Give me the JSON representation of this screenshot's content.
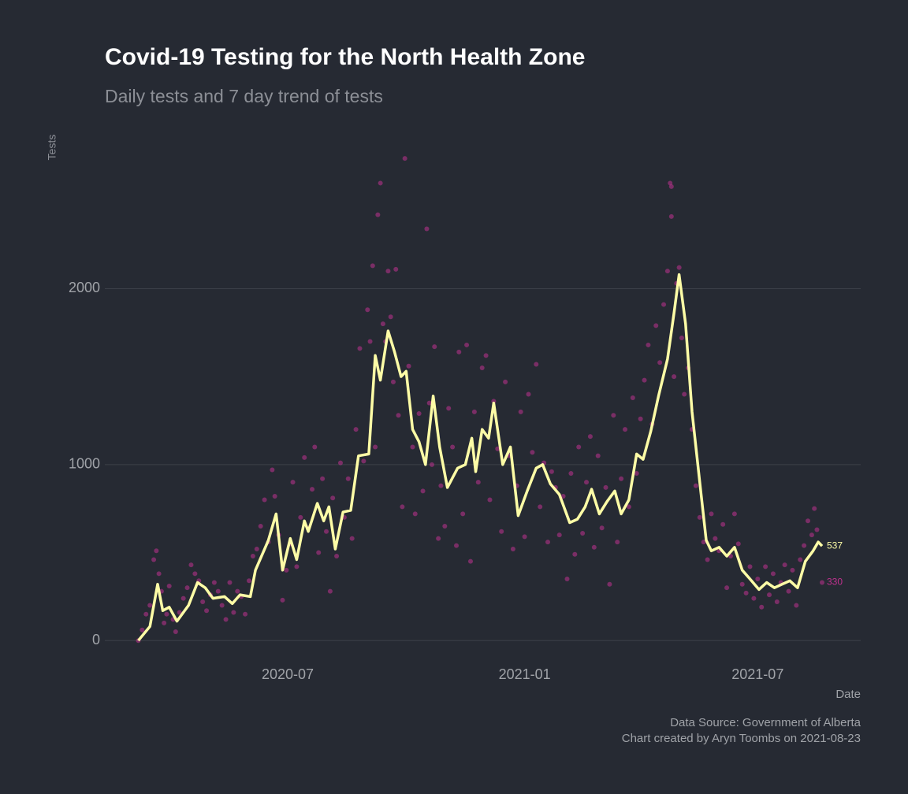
{
  "chart_data": {
    "type": "scatter",
    "title": "Covid-19 Testing for the North Health Zone",
    "subtitle": "Daily tests and 7 day trend of tests",
    "x_label": "Date",
    "y_label": "Tests",
    "caption": [
      "Data Source: Government of Alberta",
      "Chart created by Aryn Toombs on 2021-08-23"
    ],
    "xlim": [
      18302,
      18889
    ],
    "xticks": [
      {
        "value": 18444,
        "label": "2020-07"
      },
      {
        "value": 18628,
        "label": "2021-01"
      },
      {
        "value": 18809,
        "label": "2021-07"
      }
    ],
    "ylim": [
      -120,
      2790
    ],
    "yticks": [
      0,
      1000,
      2000
    ],
    "grid": true,
    "series": [
      {
        "mark": "point",
        "color": "#c0318f",
        "x": [
          18328,
          18331,
          18334,
          18337,
          18340,
          18342,
          18344,
          18346,
          18348,
          18350,
          18352,
          18355,
          18357,
          18360,
          18363,
          18366,
          18369,
          18372,
          18375,
          18378,
          18381,
          18384,
          18387,
          18390,
          18393,
          18396,
          18399,
          18402,
          18405,
          18408,
          18411,
          18414,
          18417,
          18420,
          18423,
          18426,
          18429,
          18432,
          18434,
          18437,
          18440,
          18443,
          18446,
          18448,
          18451,
          18454,
          18457,
          18460,
          18463,
          18465,
          18468,
          18471,
          18474,
          18477,
          18479,
          18482,
          18485,
          18488,
          18491,
          18494,
          18497,
          18500,
          18503,
          18506,
          18508,
          18510,
          18512,
          18514,
          18516,
          18518,
          18520,
          18522,
          18524,
          18526,
          18528,
          18530,
          18533,
          18535,
          18538,
          18541,
          18543,
          18546,
          18549,
          18552,
          18554,
          18556,
          18558,
          18561,
          18563,
          18566,
          18569,
          18572,
          18575,
          18577,
          18580,
          18583,
          18586,
          18589,
          18592,
          18595,
          18598,
          18601,
          18604,
          18607,
          18610,
          18613,
          18616,
          18619,
          18622,
          18625,
          18628,
          18631,
          18634,
          18637,
          18640,
          18643,
          18646,
          18649,
          18652,
          18655,
          18658,
          18661,
          18664,
          18667,
          18670,
          18673,
          18676,
          18679,
          18682,
          18685,
          18688,
          18691,
          18694,
          18697,
          18700,
          18703,
          18706,
          18709,
          18712,
          18715,
          18718,
          18721,
          18724,
          18727,
          18730,
          18733,
          18736,
          18739,
          18741,
          18742,
          18742,
          18744,
          18746,
          18748,
          18750,
          18752,
          18755,
          18758,
          18761,
          18764,
          18767,
          18770,
          18773,
          18776,
          18779,
          18782,
          18785,
          18788,
          18791,
          18794,
          18797,
          18800,
          18803,
          18806,
          18809,
          18812,
          18815,
          18818,
          18821,
          18824,
          18827,
          18830,
          18833,
          18836,
          18839,
          18842,
          18845,
          18848,
          18851,
          18853,
          18855,
          18859
        ],
        "values": [
          0,
          60,
          150,
          200,
          460,
          510,
          380,
          280,
          100,
          150,
          310,
          120,
          50,
          160,
          240,
          300,
          430,
          380,
          340,
          220,
          170,
          260,
          330,
          280,
          200,
          120,
          330,
          160,
          280,
          250,
          150,
          340,
          480,
          520,
          650,
          800,
          560,
          970,
          820,
          600,
          230,
          400,
          550,
          900,
          420,
          700,
          1040,
          640,
          860,
          1100,
          500,
          920,
          620,
          280,
          810,
          480,
          1010,
          700,
          920,
          580,
          1200,
          1660,
          1020,
          1880,
          1700,
          2130,
          1100,
          2420,
          2600,
          1800,
          1700,
          2100,
          1840,
          1470,
          2110,
          1280,
          760,
          2740,
          1560,
          1100,
          720,
          1290,
          850,
          2340,
          1350,
          1000,
          1670,
          580,
          880,
          650,
          1320,
          1100,
          540,
          1640,
          720,
          1680,
          450,
          1300,
          900,
          1550,
          1620,
          800,
          1360,
          1090,
          620,
          1470,
          1050,
          520,
          880,
          1300,
          590,
          1400,
          1070,
          1570,
          760,
          1010,
          560,
          960,
          870,
          600,
          820,
          350,
          950,
          490,
          1100,
          610,
          900,
          1160,
          530,
          1050,
          640,
          870,
          320,
          1280,
          560,
          920,
          1200,
          760,
          1380,
          950,
          1260,
          1480,
          1680,
          1230,
          1790,
          1580,
          1910,
          2100,
          2600,
          2580,
          2410,
          1500,
          2030,
          2120,
          1720,
          1400,
          1550,
          1200,
          880,
          700,
          560,
          460,
          720,
          580,
          510,
          660,
          300,
          480,
          720,
          550,
          320,
          270,
          420,
          240,
          350,
          190,
          420,
          260,
          380,
          220,
          330,
          430,
          280,
          400,
          200,
          460,
          540,
          680,
          600,
          750,
          630,
          330
        ]
      },
      {
        "mark": "line",
        "color": "#fdfca6",
        "x": [
          18328,
          18337,
          18343,
          18347,
          18352,
          18358,
          18367,
          18374,
          18380,
          18386,
          18395,
          18401,
          18407,
          18415,
          18419,
          18429,
          18435,
          18440,
          18446,
          18451,
          18457,
          18460,
          18467,
          18472,
          18476,
          18481,
          18487,
          18493,
          18499,
          18507,
          18512,
          18516,
          18522,
          18527,
          18532,
          18536,
          18541,
          18546,
          18551,
          18557,
          18562,
          18568,
          18576,
          18582,
          18587,
          18590,
          18595,
          18600,
          18604,
          18611,
          18617,
          18623,
          18630,
          18637,
          18642,
          18648,
          18655,
          18663,
          18669,
          18675,
          18680,
          18686,
          18692,
          18698,
          18703,
          18709,
          18715,
          18720,
          18726,
          18732,
          18739,
          18744,
          18748,
          18753,
          18758,
          18764,
          18769,
          18773,
          18779,
          18785,
          18791,
          18797,
          18803,
          18810,
          18816,
          18822,
          18828,
          18834,
          18840,
          18846,
          18852,
          18856,
          18859
        ],
        "values": [
          0,
          80,
          320,
          170,
          190,
          110,
          200,
          330,
          300,
          240,
          250,
          210,
          260,
          250,
          400,
          570,
          720,
          400,
          580,
          460,
          680,
          620,
          780,
          680,
          760,
          520,
          730,
          740,
          1050,
          1060,
          1620,
          1480,
          1760,
          1640,
          1500,
          1530,
          1200,
          1130,
          1000,
          1390,
          1100,
          870,
          980,
          1000,
          1150,
          960,
          1200,
          1150,
          1350,
          1000,
          1100,
          710,
          850,
          980,
          1000,
          890,
          830,
          670,
          690,
          760,
          860,
          720,
          790,
          850,
          720,
          800,
          1060,
          1030,
          1190,
          1390,
          1600,
          1860,
          2080,
          1800,
          1300,
          900,
          570,
          510,
          530,
          480,
          530,
          400,
          350,
          290,
          330,
          300,
          320,
          340,
          300,
          450,
          510,
          560,
          537
        ]
      }
    ]
  }
}
